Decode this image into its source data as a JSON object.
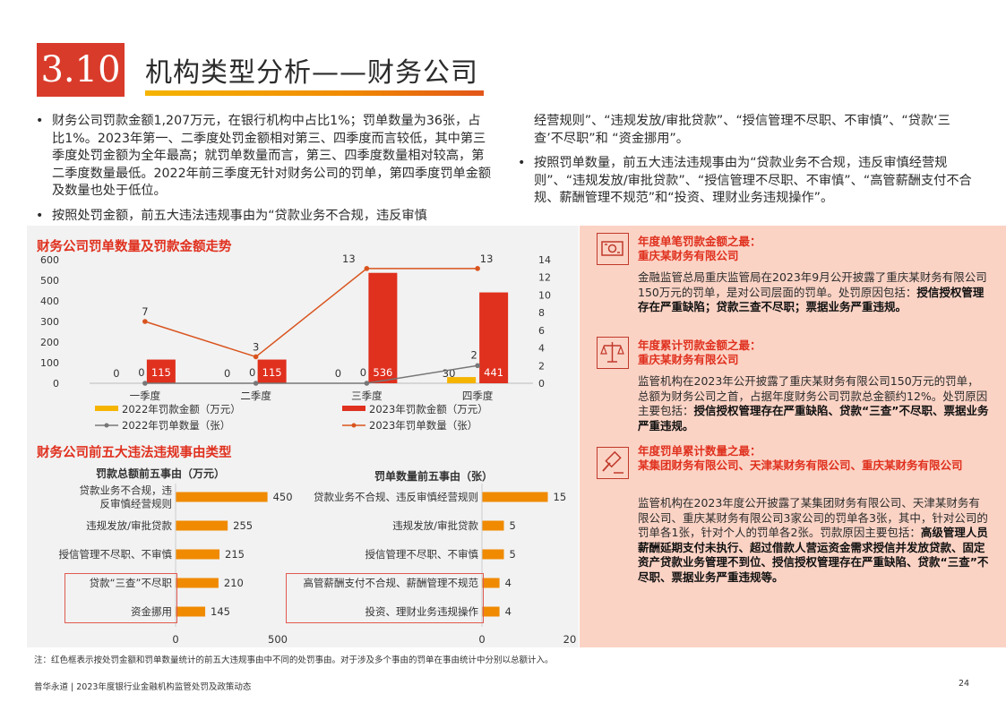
{
  "header": {
    "section_number": "3.10",
    "title": "机构类型分析——财务公司"
  },
  "text": {
    "left_bullets": [
      "财务公司罚款金额1,207万元，在银行机构中占比1%；罚单数量为36张，占比1%。2023年第一、二季度处罚金额相对第三、四季度而言较低，其中第三季度处罚金额为全年最高；就罚单数量而言，第三、四季度数量相对较高，第二季度数量最低。2022年前三季度无针对财务公司的罚单，第四季度罚单金额及数量也处于低位。",
      "按照处罚金额，前五大违法违规事由为“贷款业务不合规，违反审慎"
    ],
    "right_continuation": "经营规则”、“违规发放/审批贷款”、“授信管理不尽职、不审慎”、“贷款‘三查’不尽职”和 “资金挪用”。",
    "right_bullets": [
      "按照罚单数量，前五大违法违规事由为“贷款业务不合规，违反审慎经营规则”、“违规发放/审批贷款”、“授信管理不尽职、不审慎”、“高管薪酬支付不合规、薪酬管理不规范”和“投资、理财业务违规操作”。"
    ],
    "bullet_char": "•"
  },
  "chart_data": [
    {
      "type": "bar",
      "title": "财务公司罚单数量及罚款金额走势",
      "categories": [
        "一季度",
        "二季度",
        "三季度",
        "四季度"
      ],
      "ylim": [
        0,
        600
      ],
      "yticks": [
        "600",
        "500",
        "400",
        "300",
        "200",
        "100",
        "0"
      ],
      "y2lim": [
        0,
        14
      ],
      "y2ticks": [
        "14",
        "12",
        "10",
        "8",
        "6",
        "4",
        "2",
        "0"
      ],
      "series": [
        {
          "name": "2022年罚款金额（万元）",
          "kind": "bar",
          "axis": "left",
          "values": [
            0,
            0,
            0,
            30
          ],
          "labels": [
            "0",
            "0",
            "0",
            "30"
          ],
          "color": "#f5b400"
        },
        {
          "name": "2023年罚款金额（万元）",
          "kind": "bar",
          "axis": "left",
          "values": [
            115,
            115,
            536,
            441
          ],
          "labels": [
            "115",
            "115",
            "536",
            "441"
          ],
          "color": "#e0301e"
        },
        {
          "name": "2022年罚单数量（张）",
          "kind": "line",
          "axis": "right",
          "values": [
            0,
            0,
            0,
            2
          ],
          "labels": [
            "0",
            "0",
            "0",
            "2"
          ],
          "color": "#777777"
        },
        {
          "name": "2023年罚单数量（张）",
          "kind": "line",
          "axis": "right",
          "values": [
            7,
            3,
            13,
            13
          ],
          "labels": [
            "7",
            "3",
            "13",
            "13"
          ],
          "color": "#d9541e"
        }
      ]
    },
    {
      "type": "bar",
      "orientation": "horizontal",
      "title": "罚款总额前五事由（万元）",
      "categories": [
        "贷款业务不合规，违反审慎经营规则",
        "违规发放/审批贷款",
        "授信管理不尽职、不审慎",
        "贷款“三查”不尽职",
        "资金挪用"
      ],
      "values": [
        450,
        255,
        215,
        210,
        145
      ],
      "labels": [
        "450",
        "255",
        "215",
        "210",
        "145"
      ],
      "xlim": [
        0,
        500
      ],
      "xticks": [
        "0",
        "500"
      ],
      "color": "#f08a00"
    },
    {
      "type": "bar",
      "orientation": "horizontal",
      "title": "罚单数量前五事由（张）",
      "categories": [
        "贷款业务不合规、违反审慎经营规则",
        "违规发放/审批贷款",
        "授信管理不尽职、不审慎",
        "高管薪酬支付不合规、薪酬管理不规范",
        "投资、理财业务违规操作"
      ],
      "values": [
        15,
        5,
        5,
        4,
        4
      ],
      "labels": [
        "15",
        "5",
        "5",
        "4",
        "4"
      ],
      "xlim": [
        0,
        20
      ],
      "xticks": [
        "0",
        "20"
      ],
      "color": "#f08a00"
    }
  ],
  "reasons_section_title": "财务公司前五大违法违规事由类型",
  "features": [
    {
      "icon": "money-bill-icon",
      "head1": "年度单笔罚款金额之最：",
      "head2": "重庆某财务有限公司",
      "body": "金融监管总局重庆监管局在2023年9月公开披露了重庆某财务有限公司150万元的罚单，是对公司层面的罚单。处罚原因包括：",
      "bold": "授信授权管理存在严重缺陷；贷款三查不尽职；票据业务严重违规。"
    },
    {
      "icon": "balance-scale-icon",
      "head1": "年度累计罚款金额之最：",
      "head2": "重庆某财务有限公司",
      "body": "监管机构在2023年公开披露了重庆某财务有限公司150万元的罚单，总额为财务公司之首，占据年度财务公司罚款总金额约12%。处罚原因主要包括：",
      "bold": "授信授权管理存在严重缺陷、贷款“三查”不尽职、票据业务严重违规。"
    },
    {
      "icon": "gavel-icon",
      "head1": "年度罚单累计数量之最：",
      "head2": "某集团财务有限公司、天津某财务有限公司、重庆某财务有限公司",
      "body": "监管机构在2023年度公开披露了某集团财务有限公司、天津某财务有限公司、重庆某财务有限公司3家公司的罚单各3张，其中，针对公司的罚单各1张，针对个人的罚单各2张。罚款原因主要包括：",
      "bold": "高级管理人员薪酬延期支付未执行、超过借款人营运资金需求授信并发放贷款、固定资产贷款业务管理不到位、授信授权管理存在严重缺陷、贷款“三查”不尽职、票据业务严重违规等。"
    }
  ],
  "note": "注：红色框表示按处罚金额和罚单数量统计的前五大违规事由中不同的处罚事由。对于涉及多个事由的罚单在事由统计中分别以总额计入。",
  "footer": {
    "text": "普华永道 | 2023年度银行业金融机构监管处罚及政策动态",
    "page": "24"
  }
}
